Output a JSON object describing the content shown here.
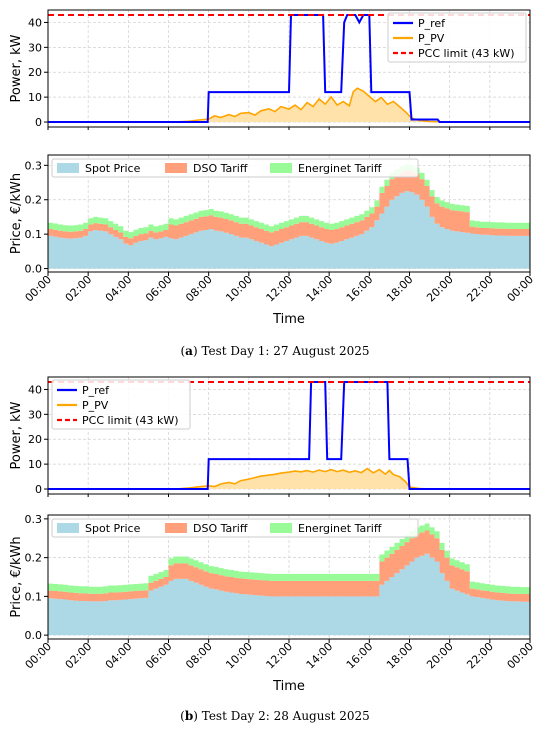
{
  "panels": [
    {
      "caption_letter": "a",
      "caption_text": "Test Day 1: 27 August 2025",
      "power": {
        "type": "line",
        "ylabel": "Power, kW",
        "ylim": [
          -2,
          45
        ],
        "yticks": [
          0,
          10,
          20,
          30,
          40
        ],
        "pcc_limit": 43,
        "legend": [
          "P_ref",
          "P_PV",
          "PCC limit (43 kW)"
        ],
        "p_ref": [
          [
            0,
            0
          ],
          [
            7.95,
            0
          ],
          [
            8.0,
            12
          ],
          [
            12,
            12
          ],
          [
            12.1,
            43
          ],
          [
            13.7,
            43
          ],
          [
            13.8,
            12
          ],
          [
            14.6,
            12
          ],
          [
            14.75,
            40
          ],
          [
            14.9,
            43
          ],
          [
            15.3,
            43
          ],
          [
            15.5,
            40
          ],
          [
            15.7,
            43
          ],
          [
            16.0,
            43
          ],
          [
            16.1,
            12
          ],
          [
            18.0,
            12
          ],
          [
            18.1,
            1
          ],
          [
            19.4,
            1
          ],
          [
            19.5,
            0
          ],
          [
            24,
            0
          ]
        ],
        "p_pv": [
          [
            0,
            0
          ],
          [
            6.0,
            0
          ],
          [
            6.5,
            0.1
          ],
          [
            7,
            0.3
          ],
          [
            7.5,
            0.8
          ],
          [
            8,
            1.2
          ],
          [
            8.3,
            2.5
          ],
          [
            8.6,
            1.8
          ],
          [
            9,
            3
          ],
          [
            9.3,
            2.2
          ],
          [
            9.6,
            3.5
          ],
          [
            10,
            3.8
          ],
          [
            10.3,
            2.8
          ],
          [
            10.6,
            4.5
          ],
          [
            11,
            5.3
          ],
          [
            11.3,
            4.2
          ],
          [
            11.6,
            6.2
          ],
          [
            12,
            5.2
          ],
          [
            12.3,
            6.8
          ],
          [
            12.6,
            5
          ],
          [
            12.9,
            7.8
          ],
          [
            13.2,
            6.2
          ],
          [
            13.5,
            9.3
          ],
          [
            13.8,
            7.2
          ],
          [
            14.1,
            10.1
          ],
          [
            14.4,
            6.8
          ],
          [
            14.7,
            8.2
          ],
          [
            15.0,
            6.5
          ],
          [
            15.2,
            12.2
          ],
          [
            15.4,
            13.6
          ],
          [
            15.7,
            12.4
          ],
          [
            16.0,
            10.3
          ],
          [
            16.3,
            8.2
          ],
          [
            16.6,
            9.8
          ],
          [
            16.9,
            7.1
          ],
          [
            17.2,
            8.3
          ],
          [
            17.5,
            6.2
          ],
          [
            17.8,
            4.1
          ],
          [
            18.1,
            1.6
          ],
          [
            18.5,
            0.6
          ],
          [
            19,
            0.2
          ],
          [
            20,
            0
          ],
          [
            24,
            0
          ]
        ]
      },
      "price": {
        "type": "area",
        "ylabel": "Price, €/kWh",
        "ylim": [
          -0.01,
          0.33
        ],
        "yticks": [
          0.0,
          0.1,
          0.2,
          0.3
        ],
        "xlabel": "Time",
        "legend": [
          "Spot Price",
          "DSO Tariff",
          "Energinet Tariff"
        ],
        "spot": [
          0.095,
          0.093,
          0.09,
          0.088,
          0.087,
          0.088,
          0.09,
          0.095,
          0.108,
          0.112,
          0.11,
          0.108,
          0.1,
          0.092,
          0.085,
          0.072,
          0.068,
          0.075,
          0.08,
          0.082,
          0.09,
          0.085,
          0.088,
          0.092,
          0.088,
          0.085,
          0.09,
          0.095,
          0.1,
          0.105,
          0.11,
          0.112,
          0.115,
          0.11,
          0.108,
          0.104,
          0.1,
          0.095,
          0.09,
          0.09,
          0.085,
          0.08,
          0.075,
          0.07,
          0.065,
          0.07,
          0.075,
          0.08,
          0.085,
          0.09,
          0.095,
          0.095,
          0.09,
          0.085,
          0.08,
          0.075,
          0.072,
          0.075,
          0.08,
          0.085,
          0.09,
          0.095,
          0.1,
          0.11,
          0.12,
          0.14,
          0.16,
          0.18,
          0.2,
          0.21,
          0.22,
          0.225,
          0.222,
          0.215,
          0.2,
          0.18,
          0.15,
          0.13,
          0.12,
          0.115,
          0.11,
          0.108,
          0.106,
          0.104,
          0.102,
          0.1,
          0.098,
          0.098,
          0.097,
          0.096,
          0.096,
          0.095,
          0.095,
          0.095,
          0.095,
          0.095
        ],
        "dso": [
          0.02,
          0.02,
          0.02,
          0.02,
          0.02,
          0.02,
          0.02,
          0.02,
          0.02,
          0.02,
          0.02,
          0.02,
          0.02,
          0.02,
          0.02,
          0.02,
          0.02,
          0.02,
          0.02,
          0.02,
          0.02,
          0.02,
          0.02,
          0.02,
          0.04,
          0.04,
          0.04,
          0.04,
          0.04,
          0.04,
          0.04,
          0.04,
          0.04,
          0.04,
          0.04,
          0.04,
          0.04,
          0.04,
          0.04,
          0.04,
          0.04,
          0.04,
          0.04,
          0.04,
          0.04,
          0.04,
          0.04,
          0.04,
          0.04,
          0.04,
          0.04,
          0.04,
          0.04,
          0.04,
          0.04,
          0.04,
          0.04,
          0.04,
          0.04,
          0.04,
          0.04,
          0.04,
          0.04,
          0.04,
          0.04,
          0.04,
          0.06,
          0.06,
          0.06,
          0.06,
          0.06,
          0.06,
          0.06,
          0.06,
          0.06,
          0.06,
          0.06,
          0.06,
          0.06,
          0.06,
          0.06,
          0.06,
          0.06,
          0.06,
          0.02,
          0.02,
          0.02,
          0.02,
          0.02,
          0.02,
          0.02,
          0.02,
          0.02,
          0.02,
          0.02,
          0.02
        ],
        "ene": [
          0.018,
          0.018,
          0.018,
          0.018,
          0.018,
          0.018,
          0.018,
          0.018,
          0.018,
          0.018,
          0.018,
          0.018,
          0.018,
          0.018,
          0.018,
          0.018,
          0.018,
          0.018,
          0.018,
          0.018,
          0.018,
          0.018,
          0.018,
          0.018,
          0.018,
          0.018,
          0.018,
          0.018,
          0.018,
          0.018,
          0.018,
          0.018,
          0.018,
          0.018,
          0.018,
          0.018,
          0.018,
          0.018,
          0.018,
          0.018,
          0.018,
          0.018,
          0.018,
          0.018,
          0.018,
          0.018,
          0.018,
          0.018,
          0.018,
          0.018,
          0.018,
          0.018,
          0.018,
          0.018,
          0.018,
          0.018,
          0.018,
          0.018,
          0.018,
          0.018,
          0.018,
          0.018,
          0.018,
          0.018,
          0.018,
          0.018,
          0.018,
          0.018,
          0.018,
          0.018,
          0.018,
          0.018,
          0.018,
          0.018,
          0.018,
          0.018,
          0.018,
          0.018,
          0.018,
          0.018,
          0.018,
          0.018,
          0.018,
          0.018,
          0.018,
          0.018,
          0.018,
          0.018,
          0.018,
          0.018,
          0.018,
          0.018,
          0.018,
          0.018,
          0.018,
          0.018
        ]
      }
    },
    {
      "caption_letter": "b",
      "caption_text": "Test Day 2: 28 August 2025",
      "power": {
        "type": "line",
        "ylabel": "Power, kW",
        "ylim": [
          -2,
          45
        ],
        "yticks": [
          0,
          10,
          20,
          30,
          40
        ],
        "pcc_limit": 43,
        "legend": [
          "P_ref",
          "P_PV",
          "PCC limit (43 kW)"
        ],
        "p_ref": [
          [
            0,
            0
          ],
          [
            7.95,
            0
          ],
          [
            8.0,
            12
          ],
          [
            13.0,
            12
          ],
          [
            13.1,
            43
          ],
          [
            13.8,
            43
          ],
          [
            13.9,
            12
          ],
          [
            14.6,
            12
          ],
          [
            14.75,
            43
          ],
          [
            16.9,
            43
          ],
          [
            17.0,
            12
          ],
          [
            17.9,
            12
          ],
          [
            18.0,
            0
          ],
          [
            24,
            0
          ]
        ],
        "p_pv": [
          [
            0,
            0
          ],
          [
            6.0,
            0
          ],
          [
            6.5,
            0.1
          ],
          [
            7,
            0.4
          ],
          [
            7.5,
            0.9
          ],
          [
            8,
            1.3
          ],
          [
            8.3,
            1.0
          ],
          [
            8.6,
            2.0
          ],
          [
            9,
            2.6
          ],
          [
            9.3,
            2.1
          ],
          [
            9.6,
            3.4
          ],
          [
            10,
            4.0
          ],
          [
            10.3,
            4.6
          ],
          [
            10.6,
            5.2
          ],
          [
            11,
            5.6
          ],
          [
            11.3,
            5.9
          ],
          [
            11.6,
            6.4
          ],
          [
            12,
            6.8
          ],
          [
            12.3,
            7.2
          ],
          [
            12.6,
            6.9
          ],
          [
            12.9,
            7.4
          ],
          [
            13.2,
            6.8
          ],
          [
            13.5,
            7.6
          ],
          [
            13.8,
            7.0
          ],
          [
            14.1,
            7.8
          ],
          [
            14.4,
            7.0
          ],
          [
            14.7,
            7.6
          ],
          [
            15.0,
            6.7
          ],
          [
            15.3,
            7.3
          ],
          [
            15.6,
            6.6
          ],
          [
            15.9,
            8.2
          ],
          [
            16.2,
            6.5
          ],
          [
            16.5,
            7.8
          ],
          [
            16.8,
            6.0
          ],
          [
            17.0,
            7.5
          ],
          [
            17.2,
            5.8
          ],
          [
            17.5,
            5.0
          ],
          [
            17.8,
            3.0
          ],
          [
            18.0,
            0.8
          ],
          [
            18.5,
            0.2
          ],
          [
            19,
            0
          ],
          [
            24,
            0
          ]
        ]
      },
      "price": {
        "type": "area",
        "ylabel": "Price, €/kWh",
        "ylim": [
          -0.01,
          0.31
        ],
        "yticks": [
          0.0,
          0.1,
          0.2,
          0.3
        ],
        "xlabel": "Time",
        "legend": [
          "Spot Price",
          "DSO Tariff",
          "Energinet Tariff"
        ],
        "spot": [
          0.095,
          0.094,
          0.093,
          0.092,
          0.09,
          0.089,
          0.088,
          0.088,
          0.087,
          0.087,
          0.087,
          0.088,
          0.09,
          0.09,
          0.091,
          0.092,
          0.093,
          0.094,
          0.095,
          0.096,
          0.115,
          0.12,
          0.125,
          0.13,
          0.14,
          0.145,
          0.145,
          0.145,
          0.14,
          0.135,
          0.13,
          0.125,
          0.12,
          0.118,
          0.115,
          0.112,
          0.11,
          0.108,
          0.106,
          0.105,
          0.104,
          0.103,
          0.102,
          0.101,
          0.1,
          0.1,
          0.1,
          0.1,
          0.1,
          0.1,
          0.1,
          0.1,
          0.1,
          0.1,
          0.1,
          0.1,
          0.1,
          0.1,
          0.1,
          0.1,
          0.1,
          0.1,
          0.1,
          0.1,
          0.1,
          0.1,
          0.13,
          0.14,
          0.15,
          0.16,
          0.17,
          0.18,
          0.19,
          0.2,
          0.205,
          0.21,
          0.2,
          0.19,
          0.16,
          0.14,
          0.12,
          0.115,
          0.11,
          0.105,
          0.1,
          0.098,
          0.096,
          0.094,
          0.092,
          0.09,
          0.089,
          0.088,
          0.087,
          0.087,
          0.086,
          0.086
        ],
        "dso": [
          0.02,
          0.02,
          0.02,
          0.02,
          0.02,
          0.02,
          0.02,
          0.02,
          0.02,
          0.02,
          0.02,
          0.02,
          0.02,
          0.02,
          0.02,
          0.02,
          0.02,
          0.02,
          0.02,
          0.02,
          0.02,
          0.02,
          0.02,
          0.02,
          0.04,
          0.04,
          0.04,
          0.04,
          0.04,
          0.04,
          0.04,
          0.04,
          0.04,
          0.04,
          0.04,
          0.04,
          0.04,
          0.04,
          0.04,
          0.04,
          0.04,
          0.04,
          0.04,
          0.04,
          0.04,
          0.04,
          0.04,
          0.04,
          0.04,
          0.04,
          0.04,
          0.04,
          0.04,
          0.04,
          0.04,
          0.04,
          0.04,
          0.04,
          0.04,
          0.04,
          0.04,
          0.04,
          0.04,
          0.04,
          0.04,
          0.04,
          0.06,
          0.06,
          0.06,
          0.06,
          0.06,
          0.06,
          0.06,
          0.06,
          0.06,
          0.06,
          0.06,
          0.06,
          0.06,
          0.06,
          0.06,
          0.06,
          0.06,
          0.06,
          0.02,
          0.02,
          0.02,
          0.02,
          0.02,
          0.02,
          0.02,
          0.02,
          0.02,
          0.02,
          0.02,
          0.02
        ],
        "ene": [
          0.018,
          0.018,
          0.018,
          0.018,
          0.018,
          0.018,
          0.018,
          0.018,
          0.018,
          0.018,
          0.018,
          0.018,
          0.018,
          0.018,
          0.018,
          0.018,
          0.018,
          0.018,
          0.018,
          0.018,
          0.018,
          0.018,
          0.018,
          0.018,
          0.018,
          0.018,
          0.018,
          0.018,
          0.018,
          0.018,
          0.018,
          0.018,
          0.018,
          0.018,
          0.018,
          0.018,
          0.018,
          0.018,
          0.018,
          0.018,
          0.018,
          0.018,
          0.018,
          0.018,
          0.018,
          0.018,
          0.018,
          0.018,
          0.018,
          0.018,
          0.018,
          0.018,
          0.018,
          0.018,
          0.018,
          0.018,
          0.018,
          0.018,
          0.018,
          0.018,
          0.018,
          0.018,
          0.018,
          0.018,
          0.018,
          0.018,
          0.018,
          0.018,
          0.018,
          0.018,
          0.018,
          0.018,
          0.018,
          0.018,
          0.018,
          0.018,
          0.018,
          0.018,
          0.018,
          0.018,
          0.018,
          0.018,
          0.018,
          0.018,
          0.018,
          0.018,
          0.018,
          0.018,
          0.018,
          0.018,
          0.018,
          0.018,
          0.018,
          0.018,
          0.018,
          0.018
        ]
      }
    }
  ],
  "xticks": [
    "00:00",
    "02:00",
    "04:00",
    "06:00",
    "08:00",
    "10:00",
    "12:00",
    "14:00",
    "16:00",
    "18:00",
    "20:00",
    "22:00",
    "00:00"
  ],
  "colors": {
    "p_ref": "#0000ff",
    "p_pv": "#ffa500",
    "pv_fill": "#ffdfa0",
    "pcc": "#ff0000",
    "spot": "#add8e6",
    "dso": "#ffa07a",
    "ene": "#98fb98"
  }
}
